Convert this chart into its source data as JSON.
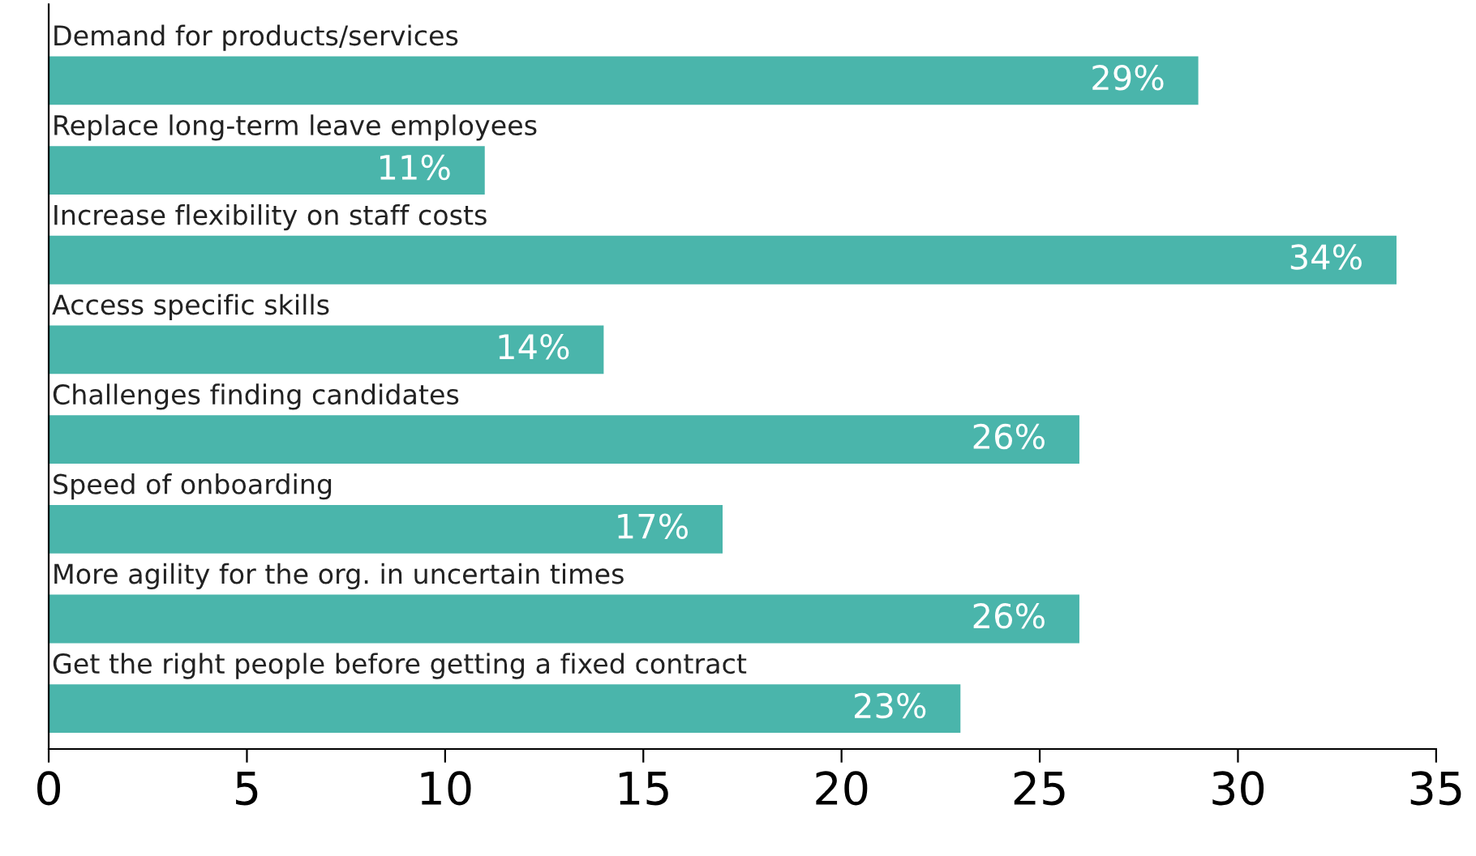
{
  "chart_data": {
    "type": "bar",
    "orientation": "horizontal",
    "categories": [
      "Demand for products/services",
      "Replace long-term leave employees",
      "Increase flexibility on staff costs",
      "Access specific skills",
      "Challenges finding candidates",
      "Speed of onboarding",
      "More agility for the org. in uncertain times",
      "Get the right people before getting a fixed contract"
    ],
    "values": [
      29,
      11,
      34,
      14,
      26,
      17,
      26,
      23
    ],
    "value_labels": [
      "29%",
      "11%",
      "34%",
      "14%",
      "26%",
      "17%",
      "26%",
      "23%"
    ],
    "color": "#4ab5ab",
    "xlim": [
      0,
      35
    ],
    "xticks": [
      0,
      5,
      10,
      15,
      20,
      25,
      30,
      35
    ],
    "grid": false,
    "legend": false
  }
}
